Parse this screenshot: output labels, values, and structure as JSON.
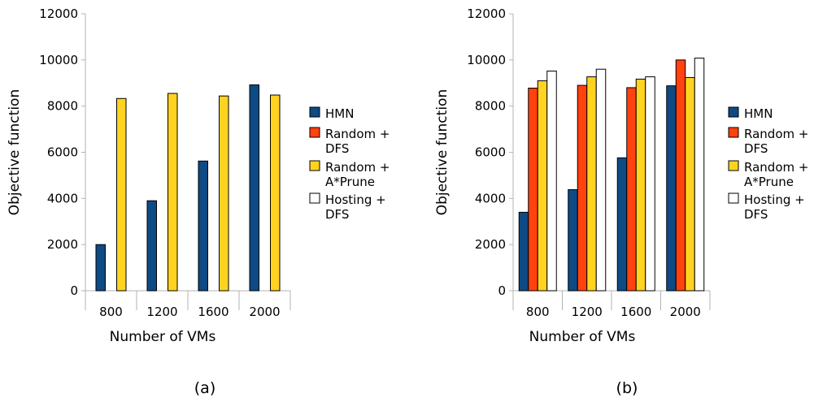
{
  "chart_data": [
    {
      "type": "bar",
      "caption": "(a)",
      "xlabel": "Number of VMs",
      "ylabel": "Objective function",
      "ylim": [
        0,
        12000
      ],
      "yticks": [
        0,
        2000,
        4000,
        6000,
        8000,
        10000,
        12000
      ],
      "grid": false,
      "legend_position": "right",
      "categories": [
        "800",
        "1200",
        "1600",
        "2000"
      ],
      "series": [
        {
          "name": "HMN",
          "color": "#0e4a84",
          "values": [
            2000,
            3900,
            5620,
            8920
          ]
        },
        {
          "name": "Random + A*Prune",
          "color": "#ffd320",
          "values": [
            8330,
            8550,
            8440,
            8480
          ]
        }
      ],
      "legend": [
        {
          "lines": [
            "HMN"
          ],
          "color": "#0e4a84"
        },
        {
          "lines": [
            "Random +",
            "DFS"
          ],
          "color": "#ff420e"
        },
        {
          "lines": [
            "Random +",
            "A*Prune"
          ],
          "color": "#ffd320"
        },
        {
          "lines": [
            "Hosting +",
            "DFS"
          ],
          "color": "#ffffff"
        }
      ]
    },
    {
      "type": "bar",
      "caption": "(b)",
      "xlabel": "Number of VMs",
      "ylabel": "Objective function",
      "ylim": [
        0,
        12000
      ],
      "yticks": [
        0,
        2000,
        4000,
        6000,
        8000,
        10000,
        12000
      ],
      "grid": false,
      "legend_position": "right",
      "categories": [
        "800",
        "1200",
        "1600",
        "2000"
      ],
      "series": [
        {
          "name": "HMN",
          "color": "#0e4a84",
          "values": [
            3400,
            4380,
            5760,
            8880
          ]
        },
        {
          "name": "Random + DFS",
          "color": "#ff420e",
          "values": [
            8780,
            8900,
            8800,
            10000
          ]
        },
        {
          "name": "Random + A*Prune",
          "color": "#ffd320",
          "values": [
            9100,
            9270,
            9170,
            9240
          ]
        },
        {
          "name": "Hosting + DFS",
          "color": "#ffffff",
          "values": [
            9520,
            9600,
            9270,
            10080
          ]
        }
      ],
      "legend": [
        {
          "lines": [
            "HMN"
          ],
          "color": "#0e4a84"
        },
        {
          "lines": [
            "Random +",
            "DFS"
          ],
          "color": "#ff420e"
        },
        {
          "lines": [
            "Random +",
            "A*Prune"
          ],
          "color": "#ffd320"
        },
        {
          "lines": [
            "Hosting +",
            "DFS"
          ],
          "color": "#ffffff"
        }
      ]
    }
  ]
}
